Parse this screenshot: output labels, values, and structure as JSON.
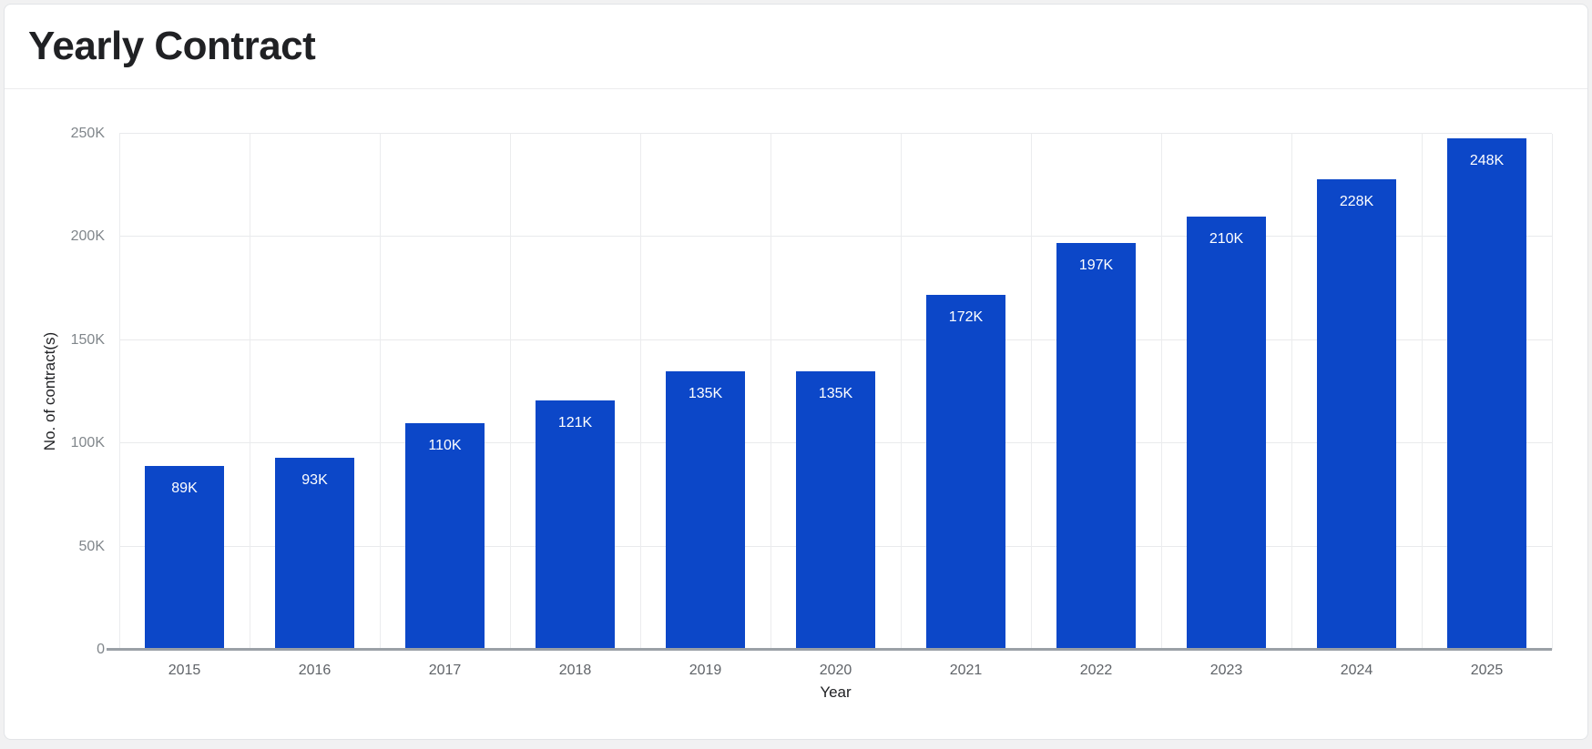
{
  "header": {
    "title": "Yearly Contract"
  },
  "chart_data": {
    "type": "bar",
    "title": "Yearly Contract",
    "categories": [
      "2015",
      "2016",
      "2017",
      "2018",
      "2019",
      "2020",
      "2021",
      "2022",
      "2023",
      "2024",
      "2025"
    ],
    "values": [
      89000,
      93000,
      110000,
      121000,
      135000,
      135000,
      172000,
      197000,
      210000,
      228000,
      248000
    ],
    "bar_labels": [
      "89K",
      "93K",
      "110K",
      "121K",
      "135K",
      "135K",
      "172K",
      "197K",
      "210K",
      "228K",
      "248K"
    ],
    "xlabel": "Year",
    "ylabel": "No. of contract(s)",
    "ylim": [
      0,
      250000
    ],
    "ytick_labels": [
      "0",
      "50K",
      "100K",
      "150K",
      "200K",
      "250K"
    ],
    "grid": true,
    "legend_position": "none",
    "colors": {
      "bar": "#0c47c8",
      "bar_label": "#ffffff",
      "grid": "#e9eaec",
      "axis_line": "#9aa0a6",
      "y_tick_text": "#80868b",
      "x_tick_text": "#5f6368",
      "axis_title_text": "#202124"
    }
  }
}
